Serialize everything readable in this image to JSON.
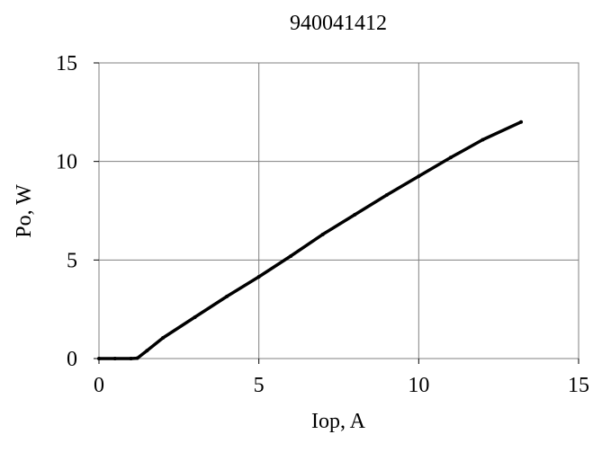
{
  "chart_data": {
    "type": "line",
    "title": "940041412",
    "xlabel": "Iop, A",
    "ylabel": "Po, W",
    "xlim": [
      0,
      15
    ],
    "ylim": [
      0,
      15
    ],
    "x_ticks": [
      0,
      5,
      10,
      15
    ],
    "y_ticks": [
      0,
      5,
      10,
      15
    ],
    "x_tick_labels": [
      "0",
      "5",
      "10",
      "15"
    ],
    "y_tick_labels": [
      "0",
      "5",
      "10",
      "15"
    ],
    "grid": true,
    "legend": "none",
    "series": [
      {
        "color": "#000000",
        "x": [
          0,
          0.5,
          1.0,
          1.2,
          1.5,
          2.0,
          3.0,
          4.0,
          5.0,
          6.0,
          7.0,
          8.0,
          9.0,
          10.0,
          11.0,
          12.0,
          13.2
        ],
        "y": [
          0,
          0,
          0,
          0.02,
          0.4,
          1.05,
          2.1,
          3.15,
          4.15,
          5.2,
          6.3,
          7.3,
          8.3,
          9.25,
          10.2,
          11.1,
          12.0
        ]
      }
    ]
  }
}
